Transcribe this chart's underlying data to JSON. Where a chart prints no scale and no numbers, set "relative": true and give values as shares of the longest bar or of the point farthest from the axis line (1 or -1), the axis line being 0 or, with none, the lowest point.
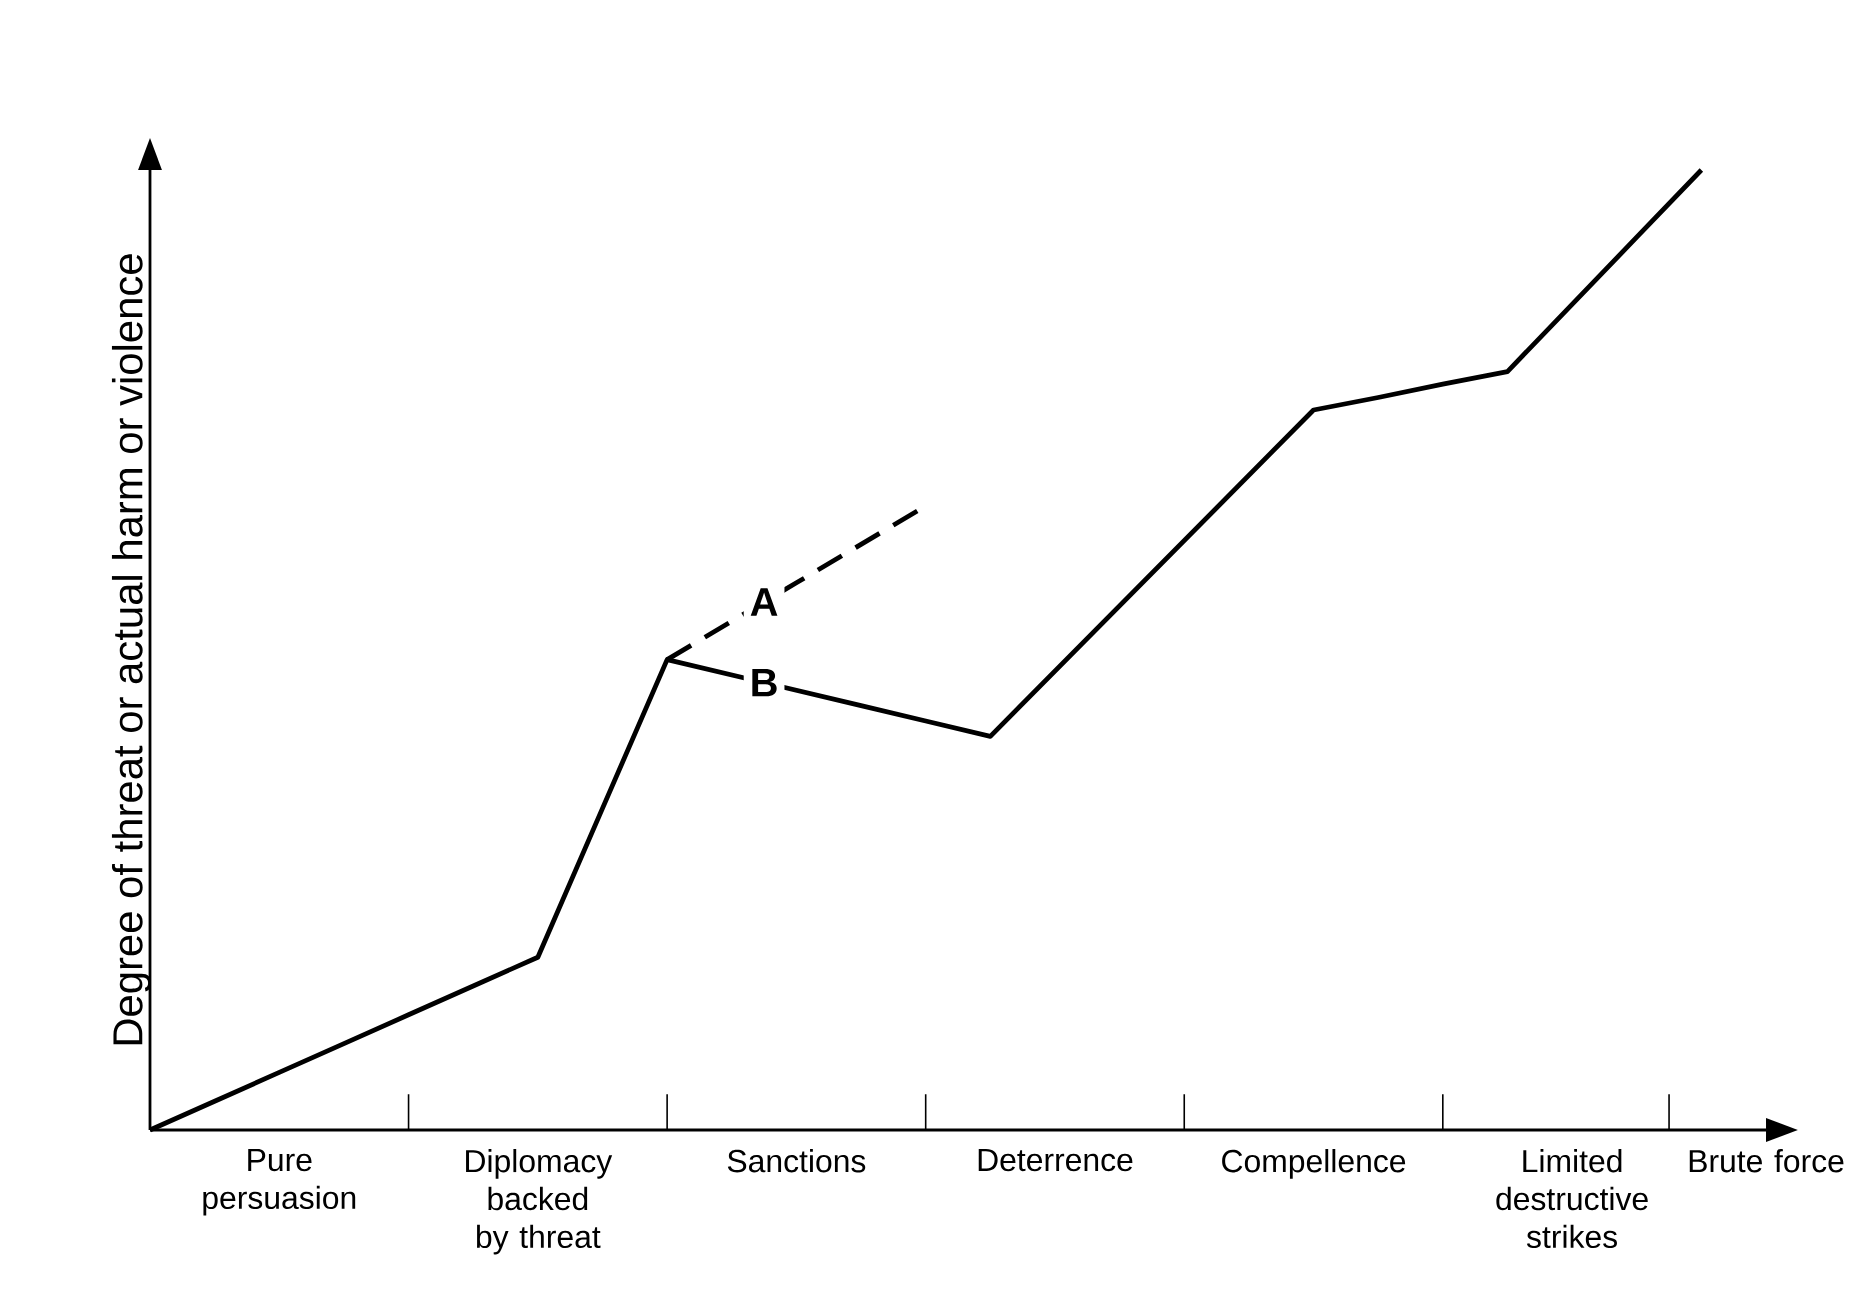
{
  "chart_data": {
    "type": "line",
    "relative": true,
    "ylabel": "Degree of threat or actual harm or violence",
    "categories": [
      null,
      null,
      "Pure persuasion",
      null,
      null,
      null,
      "Diplomacy backed by threat",
      null,
      null,
      null,
      "Sanctions",
      null,
      null,
      null,
      "Deterrence",
      null,
      null,
      null,
      "Compellence",
      null,
      null,
      null,
      "Limited destructive strikes",
      null,
      null,
      "Brute force"
    ],
    "series": [
      {
        "name": "A",
        "color": "#000000",
        "line_style": "dashed",
        "values": [
          null,
          null,
          null,
          null,
          null,
          null,
          null,
          null,
          0.49,
          0.53,
          0.57,
          0.61,
          0.65,
          null,
          null,
          null,
          null,
          null,
          null,
          null,
          null,
          null,
          null,
          null,
          null,
          null
        ]
      },
      {
        "name": "B",
        "color": "#000000",
        "line_style": "solid",
        "values": [
          0,
          0.03,
          0.06,
          0.09,
          0.12,
          0.15,
          0.18,
          0.335,
          0.49,
          0.474,
          0.458,
          0.442,
          0.426,
          0.41,
          0.478,
          0.546,
          0.614,
          0.682,
          0.75,
          0.763,
          0.777,
          0.79,
          0.86,
          0.93,
          1.0,
          null
        ]
      }
    ],
    "grid": false,
    "marker": "none"
  }
}
